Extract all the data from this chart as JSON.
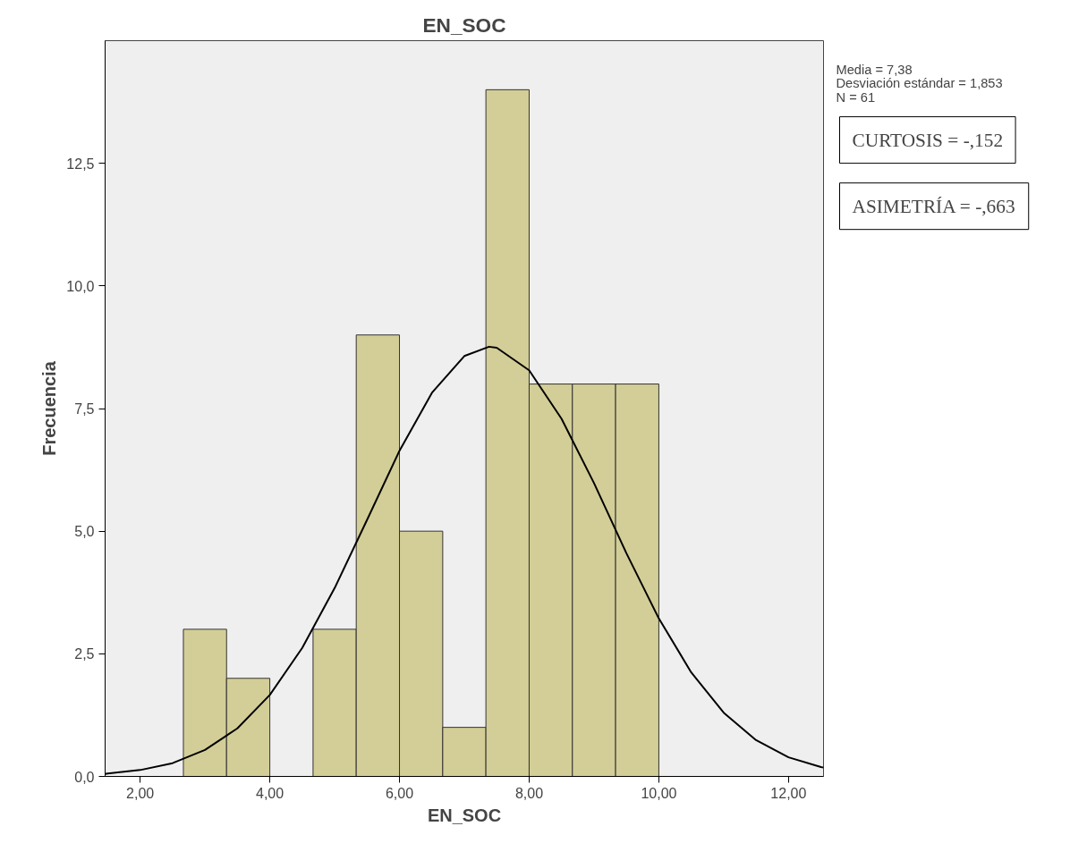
{
  "chart_data": {
    "type": "histogram",
    "title": "EN_SOC",
    "xlabel": "EN_SOC",
    "ylabel": "Frecuencia",
    "bins": [
      2.667,
      3.333,
      4.0,
      4.667,
      5.333,
      6.0,
      6.667,
      7.333,
      8.0,
      8.667,
      9.333,
      10.0
    ],
    "values": [
      3,
      2,
      0,
      3,
      9,
      5,
      1,
      14,
      8,
      8,
      8
    ],
    "color": "#d3ce97",
    "series": [
      {
        "type": "line",
        "color": "#000000",
        "x": [
          1.46,
          1.5,
          2,
          2.5,
          3,
          3.5,
          4,
          4.5,
          5,
          5.5,
          6,
          6.5,
          7,
          7.38,
          7.5,
          8,
          8.5,
          9,
          9.5,
          10,
          10.5,
          11,
          11.5,
          12,
          12.5,
          12.54
        ],
        "values": [
          0.05,
          0.06,
          0.13,
          0.27,
          0.54,
          0.98,
          1.66,
          2.62,
          3.84,
          5.23,
          6.64,
          7.82,
          8.57,
          8.76,
          8.74,
          8.28,
          7.29,
          5.98,
          4.55,
          3.22,
          2.12,
          1.3,
          0.74,
          0.39,
          0.19,
          0.18
        ]
      }
    ],
    "xlim": [
      1.46,
      12.54
    ],
    "ylim": [
      0,
      15
    ],
    "xticks": [
      {
        "value": 2,
        "label": "2,00"
      },
      {
        "value": 4,
        "label": "4,00"
      },
      {
        "value": 6,
        "label": "6,00"
      },
      {
        "value": 8,
        "label": "8,00"
      },
      {
        "value": 10,
        "label": "10,00"
      },
      {
        "value": 12,
        "label": "12,00"
      }
    ],
    "yticks": [
      {
        "value": 0,
        "label": "0,0"
      },
      {
        "value": 2.5,
        "label": "2,5"
      },
      {
        "value": 5,
        "label": "5,0"
      },
      {
        "value": 7.5,
        "label": "7,5"
      },
      {
        "value": 10,
        "label": "10,0"
      },
      {
        "value": 12.5,
        "label": "12,5"
      }
    ],
    "grid": false,
    "annotations": [
      "Media = 7,38\nDesviación estándar = 1,853\nN = 61",
      "CURTOSIS = -,152",
      "ASIMETRÍA = -,663"
    ]
  }
}
